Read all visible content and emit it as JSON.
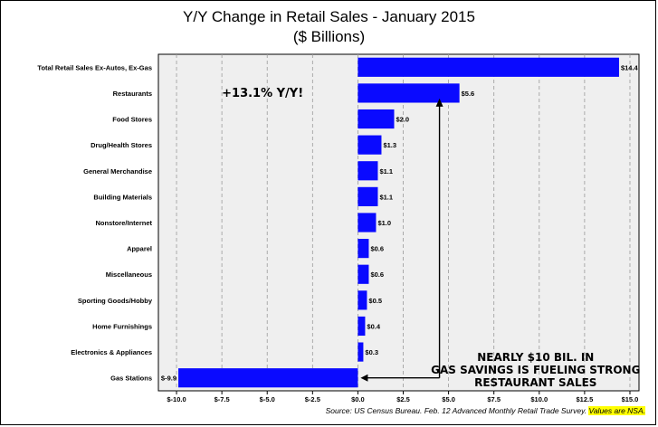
{
  "title": "Y/Y Change in Retail Sales - January 2015",
  "subtitle": "($ Billions)",
  "chart_data": {
    "type": "bar",
    "orientation": "horizontal",
    "title": "Y/Y Change in Retail Sales - January 2015",
    "subtitle": "($ Billions)",
    "xlabel": "",
    "ylabel": "",
    "xlim": [
      -11,
      15.5
    ],
    "x_ticks": [
      -10.0,
      -7.5,
      -5.0,
      -2.5,
      0.0,
      2.5,
      5.0,
      7.5,
      10.0,
      12.5,
      15.0
    ],
    "x_tick_labels": [
      "$-10.0",
      "$-7.5",
      "$-5.0",
      "$-2.5",
      "$0.0",
      "$2.5",
      "$5.0",
      "$7.5",
      "$10.0",
      "$12.5",
      "$15.0"
    ],
    "grid": "vertical dashed",
    "categories": [
      "Total Retail Sales Ex-Autos, Ex-Gas",
      "Restaurants",
      "Food Stores",
      "Drug/Health Stores",
      "General Merchandise",
      "Building Materials",
      "Nonstore/Internet",
      "Apparel",
      "Miscellaneous",
      "Sporting Goods/Hobby",
      "Home Furnishings",
      "Electronics & Appliances",
      "Gas Stations"
    ],
    "values": [
      14.4,
      5.6,
      2.0,
      1.3,
      1.1,
      1.1,
      1.0,
      0.6,
      0.6,
      0.5,
      0.4,
      0.3,
      -9.9
    ],
    "value_labels": [
      "$14.4",
      "$5.6",
      "$2.0",
      "$1.3",
      "$1.1",
      "$1.1",
      "$1.0",
      "$0.6",
      "$0.6",
      "$0.5",
      "$0.4",
      "$0.3",
      "$-9.9"
    ],
    "bar_color": "#0a0aff",
    "annotations": [
      {
        "text": "+13.1% Y/Y!"
      },
      {
        "lines": [
          "NEARLY $10 BIL. IN",
          "GAS SAVINGS IS FUELING STRONG",
          "RESTAURANT SALES"
        ]
      }
    ]
  },
  "source_text": "Source: US Census Bureau. Feb. 12 Advanced Monthly Retail Trade Survey. ",
  "source_highlight": "Values are NSA."
}
